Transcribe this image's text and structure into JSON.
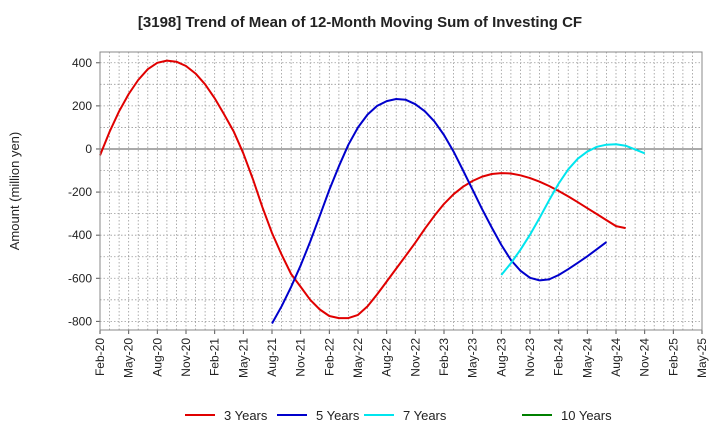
{
  "title": "[3198]  Trend of Mean of 12-Month Moving Sum of Investing CF",
  "chart_data": {
    "type": "line",
    "ylabel": "Amount (million yen)",
    "xlabel": "",
    "ylim": [
      -840,
      450
    ],
    "yticks": [
      400,
      200,
      0,
      -200,
      -400,
      -600,
      -800
    ],
    "x_ticks": [
      "Feb-20",
      "May-20",
      "Aug-20",
      "Nov-20",
      "Feb-21",
      "May-21",
      "Aug-21",
      "Nov-21",
      "Feb-22",
      "May-22",
      "Aug-22",
      "Nov-22",
      "Feb-23",
      "May-23",
      "Aug-23",
      "Nov-23",
      "Feb-24",
      "May-24",
      "Aug-24",
      "Nov-24",
      "Feb-25",
      "May-25"
    ],
    "grid": true,
    "legend_position": "bottom",
    "series": [
      {
        "name": "3 Years",
        "color": "#e00000",
        "points": [
          [
            "Feb-20",
            -30
          ],
          [
            "Mar-20",
            80
          ],
          [
            "Apr-20",
            175
          ],
          [
            "May-20",
            255
          ],
          [
            "Jun-20",
            320
          ],
          [
            "Jul-20",
            370
          ],
          [
            "Aug-20",
            400
          ],
          [
            "Sep-20",
            410
          ],
          [
            "Oct-20",
            405
          ],
          [
            "Nov-20",
            385
          ],
          [
            "Dec-20",
            350
          ],
          [
            "Jan-21",
            300
          ],
          [
            "Feb-21",
            235
          ],
          [
            "Mar-21",
            160
          ],
          [
            "Apr-21",
            80
          ],
          [
            "May-21",
            -20
          ],
          [
            "Jun-21",
            -140
          ],
          [
            "Jul-21",
            -270
          ],
          [
            "Aug-21",
            -390
          ],
          [
            "Sep-21",
            -490
          ],
          [
            "Oct-21",
            -580
          ],
          [
            "Nov-21",
            -640
          ],
          [
            "Dec-21",
            -700
          ],
          [
            "Jan-22",
            -745
          ],
          [
            "Feb-22",
            -775
          ],
          [
            "Mar-22",
            -785
          ],
          [
            "Apr-22",
            -785
          ],
          [
            "May-22",
            -770
          ],
          [
            "Jun-22",
            -730
          ],
          [
            "Jul-22",
            -675
          ],
          [
            "Aug-22",
            -615
          ],
          [
            "Sep-22",
            -555
          ],
          [
            "Oct-22",
            -495
          ],
          [
            "Nov-22",
            -435
          ],
          [
            "Dec-22",
            -370
          ],
          [
            "Jan-23",
            -310
          ],
          [
            "Feb-23",
            -255
          ],
          [
            "Mar-23",
            -210
          ],
          [
            "Apr-23",
            -175
          ],
          [
            "May-23",
            -148
          ],
          [
            "Jun-23",
            -128
          ],
          [
            "Jul-23",
            -116
          ],
          [
            "Aug-23",
            -112
          ],
          [
            "Sep-23",
            -114
          ],
          [
            "Oct-23",
            -122
          ],
          [
            "Nov-23",
            -135
          ],
          [
            "Dec-23",
            -152
          ],
          [
            "Jan-24",
            -172
          ],
          [
            "Feb-24",
            -195
          ],
          [
            "Mar-24",
            -220
          ],
          [
            "Apr-24",
            -247
          ],
          [
            "May-24",
            -275
          ],
          [
            "Jun-24",
            -302
          ],
          [
            "Jul-24",
            -330
          ],
          [
            "Aug-24",
            -358
          ],
          [
            "Sep-24",
            -367
          ]
        ]
      },
      {
        "name": "5 Years",
        "color": "#0000cc",
        "points": [
          [
            "Aug-21",
            -810
          ],
          [
            "Sep-21",
            -730
          ],
          [
            "Oct-21",
            -640
          ],
          [
            "Nov-21",
            -540
          ],
          [
            "Dec-21",
            -430
          ],
          [
            "Jan-22",
            -310
          ],
          [
            "Feb-22",
            -190
          ],
          [
            "Mar-22",
            -80
          ],
          [
            "Apr-22",
            20
          ],
          [
            "May-22",
            100
          ],
          [
            "Jun-22",
            160
          ],
          [
            "Jul-22",
            200
          ],
          [
            "Aug-22",
            222
          ],
          [
            "Sep-22",
            232
          ],
          [
            "Oct-22",
            228
          ],
          [
            "Nov-22",
            208
          ],
          [
            "Dec-22",
            175
          ],
          [
            "Jan-23",
            128
          ],
          [
            "Feb-23",
            65
          ],
          [
            "Mar-23",
            -12
          ],
          [
            "Apr-23",
            -100
          ],
          [
            "May-23",
            -190
          ],
          [
            "Jun-23",
            -280
          ],
          [
            "Jul-23",
            -365
          ],
          [
            "Aug-23",
            -445
          ],
          [
            "Sep-23",
            -515
          ],
          [
            "Oct-23",
            -565
          ],
          [
            "Nov-23",
            -598
          ],
          [
            "Dec-23",
            -610
          ],
          [
            "Jan-24",
            -605
          ],
          [
            "Feb-24",
            -585
          ],
          [
            "Mar-24",
            -558
          ],
          [
            "Apr-24",
            -528
          ],
          [
            "May-24",
            -498
          ],
          [
            "Jun-24",
            -465
          ],
          [
            "Jul-24",
            -432
          ]
        ]
      },
      {
        "name": "7 Years",
        "color": "#00e5ee",
        "points": [
          [
            "Aug-23",
            -585
          ],
          [
            "Sep-23",
            -530
          ],
          [
            "Oct-23",
            -468
          ],
          [
            "Nov-23",
            -398
          ],
          [
            "Dec-23",
            -320
          ],
          [
            "Jan-24",
            -238
          ],
          [
            "Feb-24",
            -160
          ],
          [
            "Mar-24",
            -95
          ],
          [
            "Apr-24",
            -45
          ],
          [
            "May-24",
            -12
          ],
          [
            "Jun-24",
            10
          ],
          [
            "Jul-24",
            20
          ],
          [
            "Aug-24",
            22
          ],
          [
            "Sep-24",
            15
          ],
          [
            "Oct-24",
            -2
          ],
          [
            "Nov-24",
            -20
          ]
        ]
      },
      {
        "name": "10 Years",
        "color": "#008000",
        "points": []
      }
    ]
  }
}
